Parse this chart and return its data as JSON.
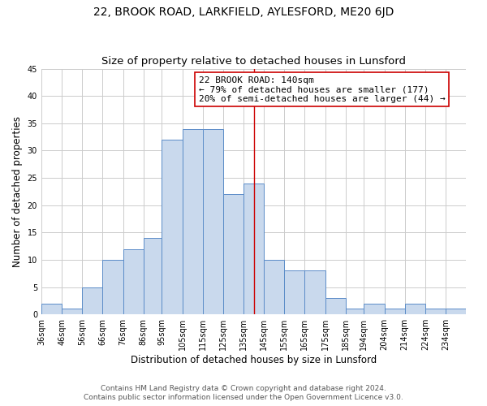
{
  "title": "22, BROOK ROAD, LARKFIELD, AYLESFORD, ME20 6JD",
  "subtitle": "Size of property relative to detached houses in Lunsford",
  "xlabel": "Distribution of detached houses by size in Lunsford",
  "ylabel": "Number of detached properties",
  "bin_labels": [
    "36sqm",
    "46sqm",
    "56sqm",
    "66sqm",
    "76sqm",
    "86sqm",
    "95sqm",
    "105sqm",
    "115sqm",
    "125sqm",
    "135sqm",
    "145sqm",
    "155sqm",
    "165sqm",
    "175sqm",
    "185sqm",
    "194sqm",
    "204sqm",
    "214sqm",
    "224sqm",
    "234sqm"
  ],
  "bin_edges": [
    36,
    46,
    56,
    66,
    76,
    86,
    95,
    105,
    115,
    125,
    135,
    145,
    155,
    165,
    175,
    185,
    194,
    204,
    214,
    224,
    234,
    244
  ],
  "counts": [
    2,
    1,
    5,
    10,
    12,
    14,
    32,
    34,
    34,
    22,
    24,
    10,
    8,
    8,
    3,
    1,
    2,
    1,
    2,
    1,
    1
  ],
  "bar_facecolor": "#c9d9ed",
  "bar_edgecolor": "#5b8cc8",
  "property_line_x": 140,
  "property_line_color": "#cc0000",
  "annotation_line1": "22 BROOK ROAD: 140sqm",
  "annotation_line2": "← 79% of detached houses are smaller (177)",
  "annotation_line3": "20% of semi-detached houses are larger (44) →",
  "annotation_box_facecolor": "#ffffff",
  "annotation_box_edgecolor": "#cc0000",
  "ylim": [
    0,
    45
  ],
  "yticks": [
    0,
    5,
    10,
    15,
    20,
    25,
    30,
    35,
    40,
    45
  ],
  "grid_color": "#cccccc",
  "footer_line1": "Contains HM Land Registry data © Crown copyright and database right 2024.",
  "footer_line2": "Contains public sector information licensed under the Open Government Licence v3.0.",
  "title_fontsize": 10,
  "subtitle_fontsize": 9.5,
  "axis_label_fontsize": 8.5,
  "tick_fontsize": 7,
  "annotation_fontsize": 8,
  "footer_fontsize": 6.5
}
